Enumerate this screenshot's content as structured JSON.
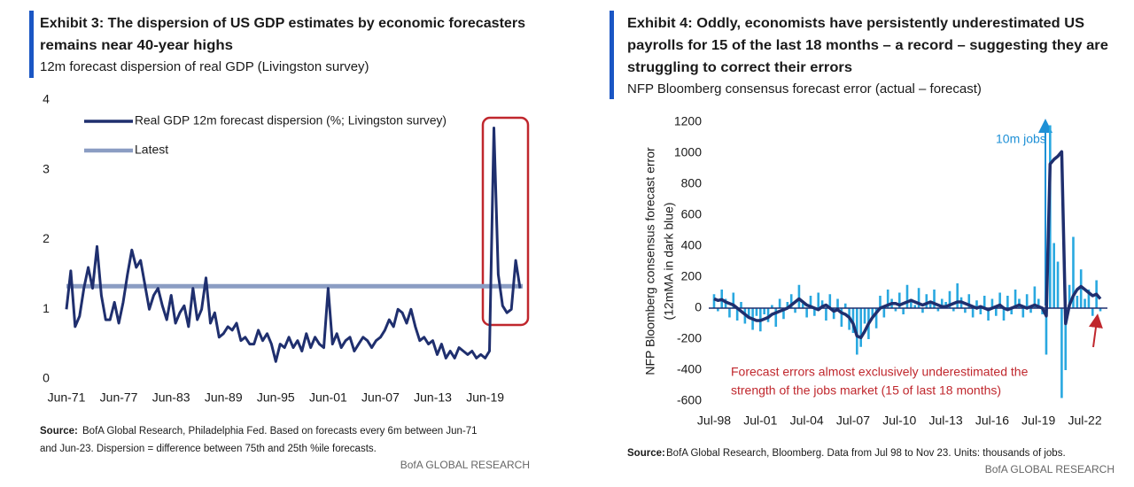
{
  "chart_data": [
    {
      "type": "line",
      "title": [
        "Exhibit 3: The dispersion of US GDP estimates by economic forecasters",
        "remains near 40-year highs"
      ],
      "subtitle": "12m forecast dispersion of real GDP (Livingston survey)",
      "categories": [
        "Jun-71",
        null,
        null,
        null,
        null,
        null,
        null,
        null,
        null,
        null,
        null,
        null,
        "Jun-77",
        null,
        null,
        null,
        null,
        null,
        null,
        null,
        null,
        null,
        null,
        null,
        "Jun-83",
        null,
        null,
        null,
        null,
        null,
        null,
        null,
        null,
        null,
        null,
        null,
        "Jun-89",
        null,
        null,
        null,
        null,
        null,
        null,
        null,
        null,
        null,
        null,
        null,
        "Jun-95",
        null,
        null,
        null,
        null,
        null,
        null,
        null,
        null,
        null,
        null,
        null,
        "Jun-01",
        null,
        null,
        null,
        null,
        null,
        null,
        null,
        null,
        null,
        null,
        null,
        "Jun-07",
        null,
        null,
        null,
        null,
        null,
        null,
        null,
        null,
        null,
        null,
        null,
        "Jun-13",
        null,
        null,
        null,
        null,
        null,
        null,
        null,
        null,
        null,
        null,
        null,
        "Jun-19",
        null,
        null,
        null,
        null,
        null,
        null,
        null,
        null
      ],
      "series": [
        {
          "name": "Real GDP 12m forecast dispersion (%; Livingston survey)",
          "color": "#1f2f6e",
          "values": [
            1.0,
            1.55,
            0.75,
            0.9,
            1.3,
            1.6,
            1.3,
            1.9,
            1.2,
            0.85,
            0.85,
            1.1,
            0.8,
            1.1,
            1.5,
            1.85,
            1.6,
            1.7,
            1.35,
            1.0,
            1.2,
            1.3,
            1.05,
            0.85,
            1.2,
            0.8,
            0.95,
            1.05,
            0.75,
            1.3,
            0.85,
            1.0,
            1.45,
            0.8,
            0.95,
            0.6,
            0.65,
            0.75,
            0.7,
            0.8,
            0.55,
            0.6,
            0.5,
            0.5,
            0.7,
            0.55,
            0.65,
            0.5,
            0.25,
            0.5,
            0.45,
            0.6,
            0.45,
            0.55,
            0.4,
            0.65,
            0.45,
            0.6,
            0.5,
            0.45,
            1.3,
            0.5,
            0.65,
            0.45,
            0.55,
            0.6,
            0.4,
            0.5,
            0.6,
            0.55,
            0.45,
            0.55,
            0.6,
            0.7,
            0.85,
            0.75,
            1.0,
            0.95,
            0.8,
            1.0,
            0.75,
            0.55,
            0.6,
            0.5,
            0.55,
            0.35,
            0.5,
            0.3,
            0.4,
            0.3,
            0.45,
            0.4,
            0.35,
            0.4,
            0.3,
            0.35,
            0.3,
            0.4,
            3.6,
            1.5,
            1.05,
            0.95,
            1.0,
            1.7,
            1.3
          ]
        }
      ],
      "reference_line": {
        "name": "Latest",
        "value": 1.33,
        "color": "#8b9dc3"
      },
      "ylim": [
        0,
        4
      ],
      "yticks": [
        0,
        1,
        2,
        3,
        4
      ],
      "grid": false,
      "source_label": "Source:",
      "source": [
        "BofA Global Research, Philadelphia Fed. Based on forecasts every 6m between Jun-71",
        "and Jun-23. Dispersion = difference between 75th and 25th %ile forecasts."
      ],
      "brand": "BofA GLOBAL RESEARCH"
    },
    {
      "type": "combo",
      "title": [
        "Exhibit 4: Oddly, economists have persistently underestimated US",
        "payrolls for 15 of the last 18 months – a record – suggesting they are",
        "struggling to correct their errors"
      ],
      "subtitle": "NFP Bloomberg consensus forecast error (actual – forecast)",
      "ylabel": [
        "NFP Bloomberg consensus forecast error",
        "(12mMA in dark blue)"
      ],
      "categories": [
        "Jul-98",
        null,
        null,
        null,
        null,
        null,
        null,
        null,
        null,
        null,
        null,
        null,
        "Jul-01",
        null,
        null,
        null,
        null,
        null,
        null,
        null,
        null,
        null,
        null,
        null,
        "Jul-04",
        null,
        null,
        null,
        null,
        null,
        null,
        null,
        null,
        null,
        null,
        null,
        "Jul-07",
        null,
        null,
        null,
        null,
        null,
        null,
        null,
        null,
        null,
        null,
        null,
        "Jul-10",
        null,
        null,
        null,
        null,
        null,
        null,
        null,
        null,
        null,
        null,
        null,
        "Jul-13",
        null,
        null,
        null,
        null,
        null,
        null,
        null,
        null,
        null,
        null,
        null,
        "Jul-16",
        null,
        null,
        null,
        null,
        null,
        null,
        null,
        null,
        null,
        null,
        null,
        "Jul-19",
        null,
        null,
        null,
        null,
        null,
        null,
        null,
        null,
        null,
        null,
        null,
        "Jul-22",
        null,
        null,
        null,
        null
      ],
      "series": [
        {
          "kind": "bar",
          "color": "#29a8e0",
          "values": [
            90,
            -20,
            120,
            60,
            -60,
            100,
            -80,
            40,
            -100,
            -60,
            -140,
            -50,
            -150,
            -40,
            -90,
            20,
            -120,
            60,
            -70,
            40,
            90,
            -30,
            150,
            30,
            -60,
            80,
            -50,
            100,
            50,
            -80,
            90,
            -70,
            60,
            -120,
            30,
            -140,
            -160,
            -300,
            -250,
            -100,
            -200,
            -50,
            -130,
            80,
            -60,
            120,
            60,
            -20,
            100,
            -40,
            150,
            60,
            20,
            130,
            -30,
            90,
            40,
            120,
            -20,
            60,
            40,
            110,
            -20,
            160,
            70,
            -30,
            90,
            -60,
            50,
            -40,
            80,
            -80,
            60,
            -50,
            100,
            -80,
            80,
            -40,
            120,
            60,
            -60,
            90,
            -30,
            140,
            60,
            -40,
            -300,
            1180,
            420,
            300,
            -580,
            -400,
            150,
            460,
            80,
            250,
            60,
            120,
            -50,
            180,
            -20
          ]
        },
        {
          "kind": "line",
          "color": "#1f2f6e",
          "values": [
            60,
            50,
            55,
            40,
            30,
            20,
            0,
            -20,
            -40,
            -60,
            -70,
            -80,
            -80,
            -70,
            -60,
            -40,
            -30,
            -20,
            -10,
            0,
            20,
            40,
            60,
            40,
            20,
            10,
            0,
            -10,
            10,
            20,
            0,
            -20,
            -10,
            -30,
            -40,
            -60,
            -100,
            -180,
            -190,
            -150,
            -100,
            -60,
            -30,
            0,
            10,
            20,
            30,
            30,
            20,
            30,
            40,
            50,
            40,
            30,
            20,
            30,
            40,
            30,
            20,
            10,
            10,
            20,
            30,
            40,
            40,
            30,
            20,
            10,
            0,
            10,
            0,
            -10,
            0,
            10,
            20,
            0,
            -10,
            0,
            10,
            20,
            10,
            0,
            10,
            20,
            10,
            0,
            -50,
            930,
            960,
            980,
            1010,
            -100,
            20,
            80,
            120,
            140,
            120,
            100,
            80,
            90,
            60
          ]
        }
      ],
      "ylim": [
        -600,
        1200
      ],
      "yticks": [
        -600,
        -400,
        -200,
        0,
        200,
        400,
        600,
        800,
        1000,
        1200
      ],
      "grid": false,
      "annotations": [
        "10m jobs",
        "Forecast errors almost exclusively underestimated the",
        "strength of the jobs market (15 of last 18 months)"
      ],
      "source_label": "Source:",
      "source": [
        "BofA Global Research, Bloomberg. Data from Jul 98 to Nov 23. Units: thousands of jobs."
      ],
      "brand": "BofA GLOBAL RESEARCH"
    }
  ]
}
